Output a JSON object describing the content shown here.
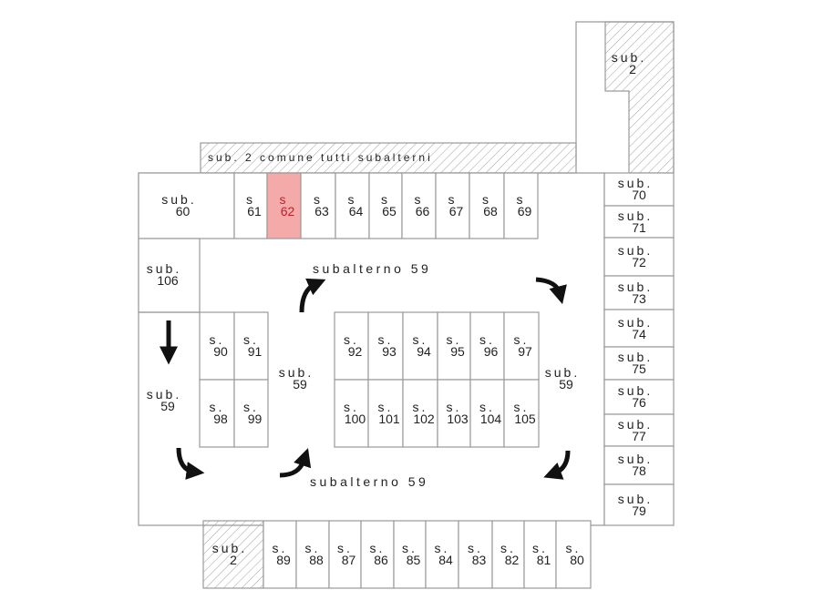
{
  "colors": {
    "line": "#9a9a9a",
    "highlight_fill": "#f5aaaa",
    "highlight_text": "#c0202a",
    "hatch": "#9a9a9a"
  },
  "common_strip": "sub. 2 comune tutti subalterni",
  "tower_unit": {
    "p": "sub.",
    "n": "2"
  },
  "bottom_common_unit": {
    "p": "sub.",
    "n": "2"
  },
  "highlighted_unit": "62",
  "top_row": [
    {
      "p": "sub.",
      "n": "60"
    },
    {
      "p": "s",
      "n": "61"
    },
    {
      "p": "s",
      "n": "62"
    },
    {
      "p": "s",
      "n": "63"
    },
    {
      "p": "s",
      "n": "64"
    },
    {
      "p": "s",
      "n": "65"
    },
    {
      "p": "s",
      "n": "66"
    },
    {
      "p": "s",
      "n": "67"
    },
    {
      "p": "s",
      "n": "68"
    },
    {
      "p": "s",
      "n": "69"
    }
  ],
  "right_column": [
    {
      "p": "sub.",
      "n": "70"
    },
    {
      "p": "sub.",
      "n": "71"
    },
    {
      "p": "sub.",
      "n": "72"
    },
    {
      "p": "sub.",
      "n": "73"
    },
    {
      "p": "sub.",
      "n": "74"
    },
    {
      "p": "sub.",
      "n": "75"
    },
    {
      "p": "sub.",
      "n": "76"
    },
    {
      "p": "sub.",
      "n": "77"
    },
    {
      "p": "sub.",
      "n": "78"
    },
    {
      "p": "sub.",
      "n": "79"
    }
  ],
  "left_units": [
    {
      "p": "sub.",
      "n": "106"
    },
    {
      "p": "sub.",
      "n": "59"
    }
  ],
  "left_block": [
    {
      "p": "s.",
      "n": "90"
    },
    {
      "p": "s.",
      "n": "91"
    },
    {
      "p": "s.",
      "n": "98"
    },
    {
      "p": "s.",
      "n": "99"
    }
  ],
  "center_block": [
    {
      "p": "s.",
      "n": "92"
    },
    {
      "p": "s.",
      "n": "93"
    },
    {
      "p": "s.",
      "n": "94"
    },
    {
      "p": "s.",
      "n": "95"
    },
    {
      "p": "s.",
      "n": "96"
    },
    {
      "p": "s.",
      "n": "97"
    },
    {
      "p": "s.",
      "n": "100"
    },
    {
      "p": "s.",
      "n": "101"
    },
    {
      "p": "s.",
      "n": "102"
    },
    {
      "p": "s.",
      "n": "103"
    },
    {
      "p": "s.",
      "n": "104"
    },
    {
      "p": "s.",
      "n": "105"
    }
  ],
  "bottom_row": [
    {
      "p": "s.",
      "n": "89"
    },
    {
      "p": "s.",
      "n": "88"
    },
    {
      "p": "s.",
      "n": "87"
    },
    {
      "p": "s.",
      "n": "86"
    },
    {
      "p": "s.",
      "n": "85"
    },
    {
      "p": "s.",
      "n": "84"
    },
    {
      "p": "s.",
      "n": "83"
    },
    {
      "p": "s.",
      "n": "82"
    },
    {
      "p": "s.",
      "n": "81"
    },
    {
      "p": "s.",
      "n": "80"
    }
  ],
  "aisle_labels": {
    "top": "subalterno 59",
    "bottom": "subalterno 59",
    "middle": {
      "p": "sub.",
      "n": "59"
    },
    "right": {
      "p": "sub.",
      "n": "59"
    }
  },
  "arrows": [
    "curved-up-right",
    "curved-down-right",
    "straight-down",
    "curved-down-right",
    "curved-up-right",
    "curved-down-left"
  ]
}
